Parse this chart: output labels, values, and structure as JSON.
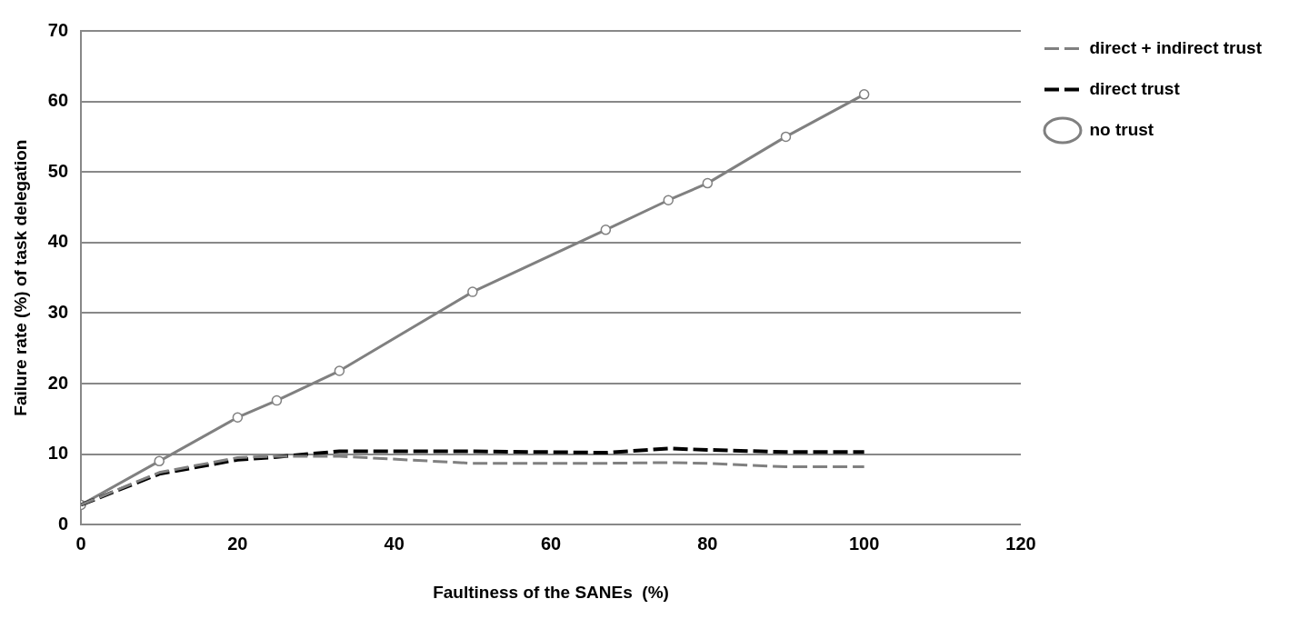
{
  "chart_data": {
    "type": "line",
    "xlabel": "Faultiness of the SANEs  (%)",
    "ylabel": "Failure rate (%) of task delegation",
    "x": [
      0,
      10,
      20,
      25,
      33,
      50,
      67,
      75,
      80,
      90,
      100
    ],
    "series": [
      {
        "name": "direct + indirect trust",
        "color": "#808080",
        "line_style": "dashed",
        "marker": "none",
        "values": [
          2.8,
          7.4,
          9.5,
          9.7,
          9.7,
          8.7,
          8.7,
          8.8,
          8.7,
          8.2,
          8.2
        ]
      },
      {
        "name": "direct trust",
        "color": "#000000",
        "line_style": "dashed",
        "marker": "none",
        "values": [
          2.8,
          7.2,
          9.2,
          9.6,
          10.4,
          10.4,
          10.2,
          10.8,
          10.6,
          10.3,
          10.3
        ]
      },
      {
        "name": "no trust",
        "color": "#808080",
        "line_style": "solid",
        "marker": "circle",
        "values": [
          2.8,
          9,
          15.2,
          17.6,
          21.8,
          33,
          41.8,
          46,
          48.4,
          55,
          61
        ]
      }
    ],
    "xlim": [
      0,
      120
    ],
    "xticks": [
      0,
      20,
      40,
      60,
      80,
      100,
      120
    ],
    "ylim": [
      0,
      70
    ],
    "yticks": [
      0,
      10,
      20,
      30,
      40,
      50,
      60,
      70
    ],
    "grid": "y",
    "legend": "top right"
  }
}
